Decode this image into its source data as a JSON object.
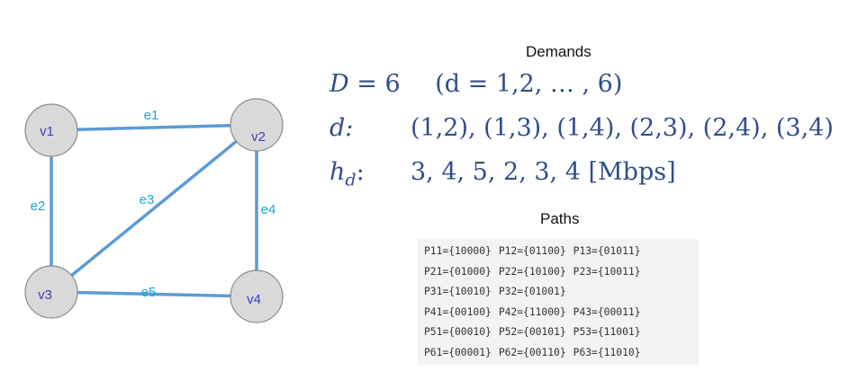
{
  "graph": {
    "nodes": [
      {
        "id": "v1",
        "label": "v1"
      },
      {
        "id": "v2",
        "label": "v2"
      },
      {
        "id": "v3",
        "label": "v3"
      },
      {
        "id": "v4",
        "label": "v4"
      }
    ],
    "edges": [
      {
        "label": "e1",
        "from": "v1",
        "to": "v2"
      },
      {
        "label": "e2",
        "from": "v1",
        "to": "v3"
      },
      {
        "label": "e3",
        "from": "v2",
        "to": "v3"
      },
      {
        "label": "e4",
        "from": "v2",
        "to": "v4"
      },
      {
        "label": "e5",
        "from": "v3",
        "to": "v4"
      }
    ],
    "colors": {
      "edge": "#5b9bd5",
      "edge_label": "#1aa7d4",
      "node_fill": "#d9d9d9",
      "node_stroke": "#8a8a8a",
      "node_label": "#3a3fbf"
    }
  },
  "demands": {
    "heading": "Demands",
    "line1": {
      "lhs": "D",
      "eq": " = 6",
      "paren": "(d = 1,2, … , 6)"
    },
    "line2": {
      "label": "d:",
      "value": "(1,2),  (1,3), (1,4), (2,3), (2,4), (3,4)"
    },
    "line3": {
      "label_main": "h",
      "label_sub": "d",
      "label_colon": ":",
      "value": "3, 4, 5, 2, 3, 4  [Mbps]"
    }
  },
  "paths": {
    "heading": "Paths",
    "rows": [
      [
        "P11={10000}",
        "P12={01100}",
        "P13={01011}"
      ],
      [
        "P21={01000}",
        "P22={10100}",
        "P23={10011}"
      ],
      [
        "P31={10010}",
        "P32={01001}"
      ],
      [
        "P41={00100}",
        "P42={11000}",
        "P43={00011}"
      ],
      [
        "P51={00010}",
        "P52={00101}",
        "P53={11001}"
      ],
      [
        "P61={00001}",
        "P62={00110}",
        "P63={11010}"
      ]
    ]
  }
}
